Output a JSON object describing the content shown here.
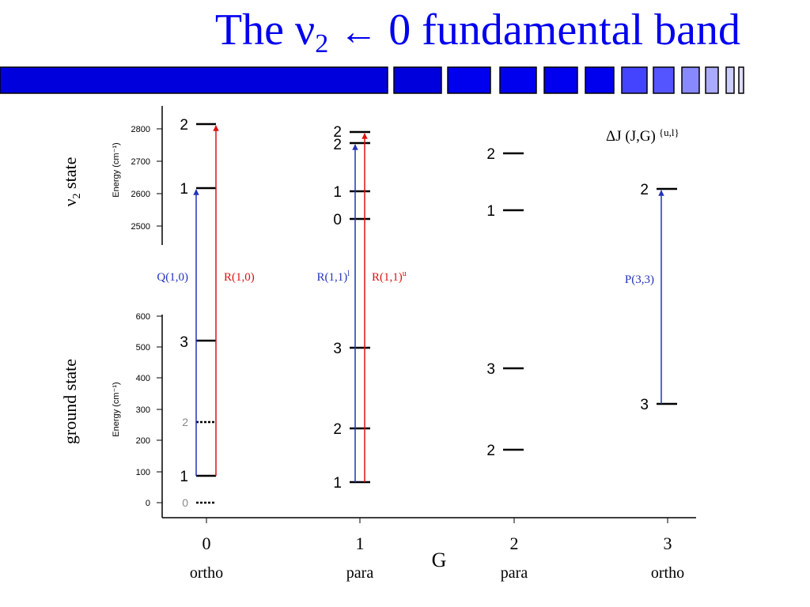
{
  "title": {
    "text_main": "The ν",
    "text_sub": "2",
    "text_arrow": "←",
    "text_tail": "0 fundamental band"
  },
  "colors": {
    "title": "#0000ee",
    "bar": "#0000dd",
    "bar_light": "#8888ff",
    "arrow_blue": "#2233bb",
    "arrow_red": "#dd1111"
  },
  "legend": {
    "main": "ΔJ (J,G)",
    "sup": "{u,l}"
  },
  "upper_panel": {
    "side_label_main": "ν",
    "side_label_sub": "2",
    "side_label_tail": " state",
    "ylabel": "Energy (cm⁻¹)",
    "ticks": [
      "2800",
      "2700",
      "2600",
      "2500"
    ]
  },
  "lower_panel": {
    "side_label": "ground state",
    "ylabel": "Energy (cm⁻¹)",
    "ticks": [
      "600",
      "500",
      "400",
      "300",
      "200",
      "100",
      "0"
    ]
  },
  "x_axis": {
    "label": "G",
    "ticks": [
      {
        "value": "0",
        "type": "ortho"
      },
      {
        "value": "1",
        "type": "para"
      },
      {
        "value": "2",
        "type": "para"
      },
      {
        "value": "3",
        "type": "ortho"
      }
    ]
  },
  "levels": {
    "g0_upper_2": "2",
    "g0_upper_1": "1",
    "g0_lower_3": "3",
    "g0_lower_2": "2",
    "g0_lower_1": "1",
    "g0_lower_0": "0",
    "g1_upper_2a": "2",
    "g1_upper_2b": "2",
    "g1_upper_1": "1",
    "g1_upper_0": "0",
    "g1_lower_3": "3",
    "g1_lower_2": "2",
    "g1_lower_1": "1",
    "g2_upper_2": "2",
    "g2_upper_1": "1",
    "g2_lower_3": "3",
    "g2_lower_2": "2",
    "g3_upper_2": "2",
    "g3_lower_3": "3"
  },
  "transitions": [
    {
      "label": "Q(1,0)",
      "sup": "",
      "color": "#2233bb"
    },
    {
      "label": "R(1,0)",
      "sup": "",
      "color": "#dd1111"
    },
    {
      "label": "R(1,1)",
      "sup": "l",
      "color": "#2233bb"
    },
    {
      "label": "R(1,1)",
      "sup": "u",
      "color": "#dd1111"
    },
    {
      "label": "P(3,3)",
      "sup": "",
      "color": "#2233bb"
    }
  ]
}
